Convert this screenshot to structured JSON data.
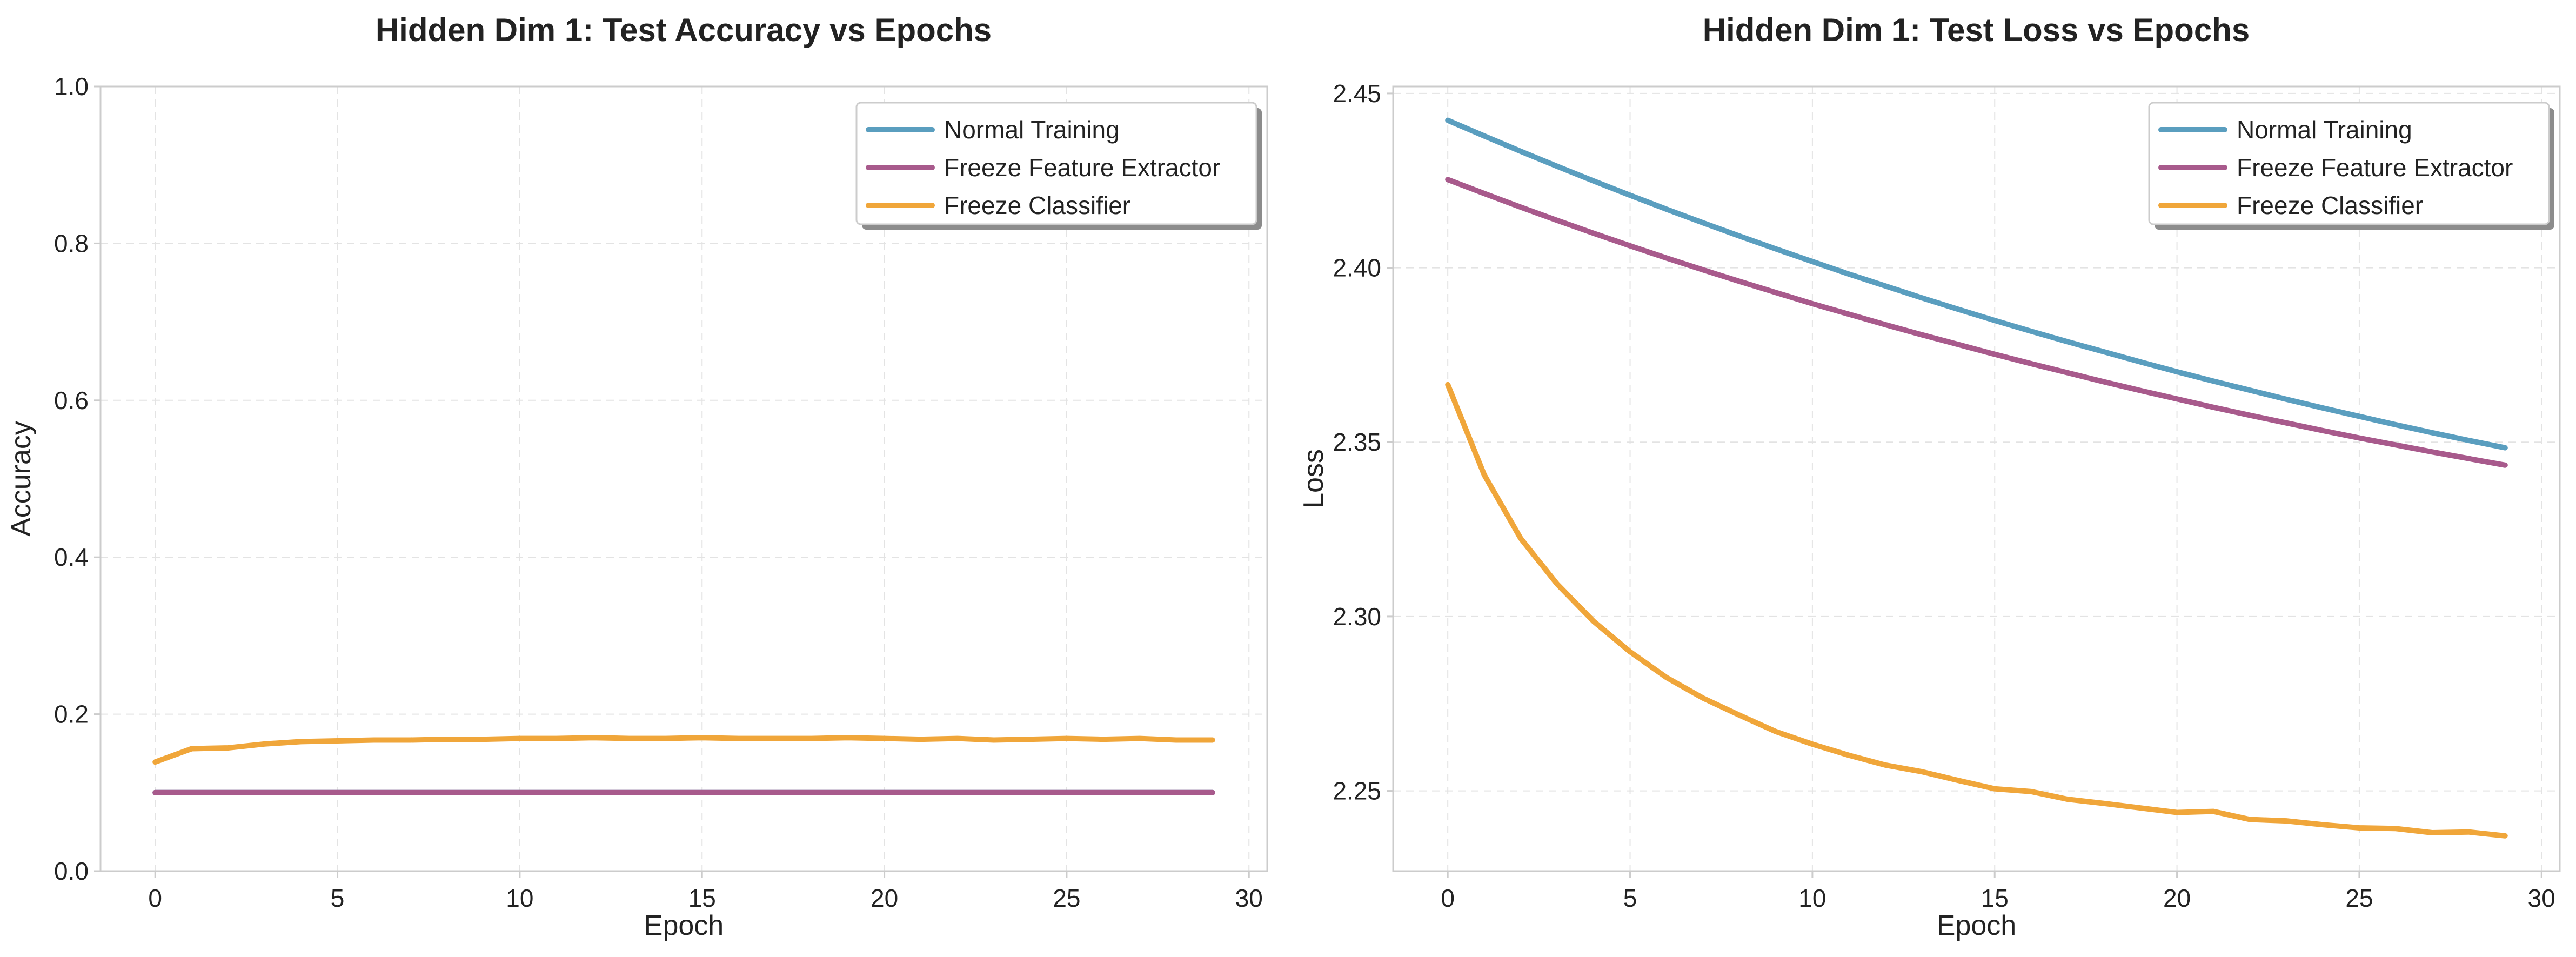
{
  "chart_data": [
    {
      "type": "line",
      "title": "Hidden Dim 1: Test Accuracy vs Epochs",
      "xlabel": "Epoch",
      "ylabel": "Accuracy",
      "xlim": [
        -1.5,
        30.5
      ],
      "ylim": [
        0.0,
        1.0
      ],
      "xticks": [
        "0",
        "5",
        "10",
        "15",
        "20",
        "25",
        "30"
      ],
      "yticks": [
        "0.0",
        "0.2",
        "0.4",
        "0.6",
        "0.8",
        "1.0"
      ],
      "grid": true,
      "legend_position": "top-right",
      "x": [
        0,
        1,
        2,
        3,
        4,
        5,
        6,
        7,
        8,
        9,
        10,
        11,
        12,
        13,
        14,
        15,
        16,
        17,
        18,
        19,
        20,
        21,
        22,
        23,
        24,
        25,
        26,
        27,
        28,
        29
      ],
      "series": [
        {
          "name": "Normal Training",
          "color": "#5a9ebf",
          "values": [
            0.1,
            0.1,
            0.1,
            0.1,
            0.1,
            0.1,
            0.1,
            0.1,
            0.1,
            0.1,
            0.1,
            0.1,
            0.1,
            0.1,
            0.1,
            0.1,
            0.1,
            0.1,
            0.1,
            0.1,
            0.1,
            0.1,
            0.1,
            0.1,
            0.1,
            0.1,
            0.1,
            0.1,
            0.1,
            0.1
          ]
        },
        {
          "name": "Freeze Feature Extractor",
          "color": "#a85a8c",
          "values": [
            0.1,
            0.1,
            0.1,
            0.1,
            0.1,
            0.1,
            0.1,
            0.1,
            0.1,
            0.1,
            0.1,
            0.1,
            0.1,
            0.1,
            0.1,
            0.1,
            0.1,
            0.1,
            0.1,
            0.1,
            0.1,
            0.1,
            0.1,
            0.1,
            0.1,
            0.1,
            0.1,
            0.1,
            0.1,
            0.1
          ]
        },
        {
          "name": "Freeze Classifier",
          "color": "#f0a63a",
          "values": [
            0.139,
            0.156,
            0.157,
            0.162,
            0.165,
            0.166,
            0.167,
            0.167,
            0.168,
            0.168,
            0.169,
            0.169,
            0.17,
            0.169,
            0.169,
            0.17,
            0.169,
            0.169,
            0.169,
            0.17,
            0.169,
            0.168,
            0.169,
            0.167,
            0.168,
            0.169,
            0.168,
            0.169,
            0.167,
            0.167
          ]
        }
      ]
    },
    {
      "type": "line",
      "title": "Hidden Dim 1: Test Loss vs Epochs",
      "xlabel": "Epoch",
      "ylabel": "Loss",
      "xlim": [
        -1.5,
        30.5
      ],
      "ylim": [
        2.227,
        2.452
      ],
      "xticks": [
        "0",
        "5",
        "10",
        "15",
        "20",
        "25",
        "30"
      ],
      "yticks": [
        "2.25",
        "2.30",
        "2.35",
        "2.40",
        "2.45"
      ],
      "grid": true,
      "legend_position": "top-right",
      "x": [
        0,
        1,
        2,
        3,
        4,
        5,
        6,
        7,
        8,
        9,
        10,
        11,
        12,
        13,
        14,
        15,
        16,
        17,
        18,
        19,
        20,
        21,
        22,
        23,
        24,
        25,
        26,
        27,
        28,
        29
      ],
      "series": [
        {
          "name": "Normal Training",
          "color": "#5a9ebf",
          "values": [
            2.4423,
            2.4378,
            2.4334,
            2.4291,
            2.4249,
            2.4208,
            2.4168,
            2.4129,
            2.4091,
            2.4054,
            2.4018,
            2.3982,
            2.3948,
            2.3914,
            2.3881,
            2.3849,
            2.3818,
            2.3788,
            2.3759,
            2.373,
            2.3702,
            2.3675,
            2.3649,
            2.3623,
            2.3598,
            2.3574,
            2.355,
            2.3527,
            2.3505,
            2.3484
          ]
        },
        {
          "name": "Freeze Feature Extractor",
          "color": "#a85a8c",
          "values": [
            2.4253,
            2.4213,
            2.4174,
            2.4136,
            2.4099,
            2.4063,
            2.4028,
            2.3994,
            2.3961,
            2.3929,
            2.3897,
            2.3867,
            2.3837,
            2.3808,
            2.378,
            2.3752,
            2.3725,
            2.3699,
            2.3673,
            2.3648,
            2.3624,
            2.36,
            2.3577,
            2.3555,
            2.3533,
            2.3512,
            2.3492,
            2.3472,
            2.3453,
            2.3434
          ]
        },
        {
          "name": "Freeze Classifier",
          "color": "#f0a63a",
          "values": [
            2.3665,
            2.3406,
            2.3224,
            2.3093,
            2.2986,
            2.2899,
            2.2825,
            2.2766,
            2.2717,
            2.267,
            2.2634,
            2.2602,
            2.2574,
            2.2555,
            2.253,
            2.2506,
            2.2498,
            2.2476,
            2.2464,
            2.2451,
            2.2438,
            2.2441,
            2.2418,
            2.2414,
            2.2403,
            2.2394,
            2.2392,
            2.238,
            2.2382,
            2.2371
          ]
        }
      ]
    }
  ]
}
